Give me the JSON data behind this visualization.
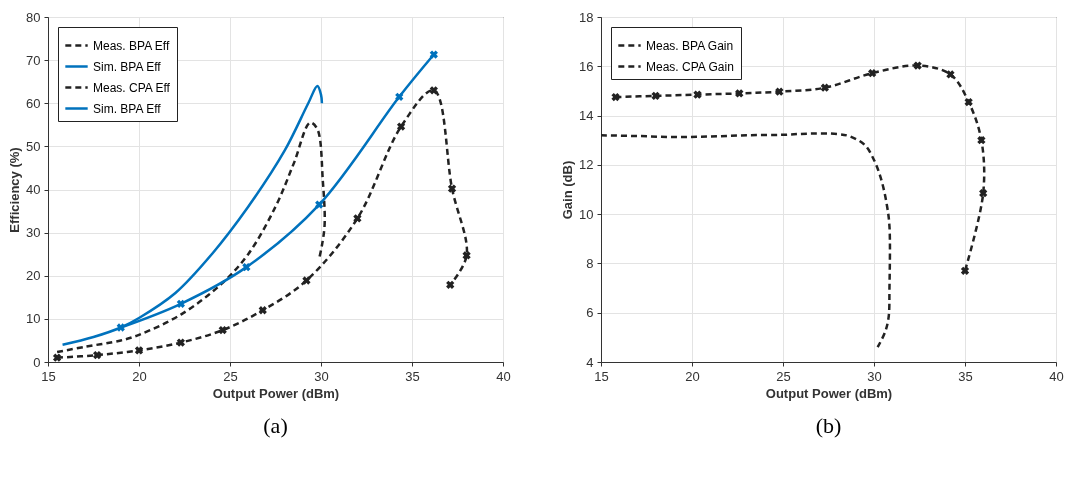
{
  "chart_data": [
    {
      "type": "line",
      "xlabel": "Output Power (dBm)",
      "ylabel": "Efficiency (%)",
      "xlim": [
        15,
        40
      ],
      "xticks": [
        15,
        20,
        25,
        30,
        35,
        40
      ],
      "ylim": [
        0,
        80
      ],
      "yticks": [
        0,
        10,
        20,
        30,
        40,
        50,
        60,
        70,
        80
      ],
      "grid": true,
      "legend": "top left",
      "annotations": [
        "(a)"
      ],
      "series": [
        {
          "name": "Meas. BPA Eff",
          "color": "#222222",
          "line_style": "dashed",
          "marker": "none",
          "x": [
            15.5,
            17,
            19,
            20,
            22.3,
            24.5,
            26,
            27.5,
            28.5,
            29.4,
            29.8,
            30.1,
            30.2,
            30.05,
            29.9
          ],
          "values": [
            2.3,
            3.5,
            5,
            6.3,
            11,
            18,
            25,
            36,
            46,
            55.5,
            54,
            42,
            32,
            27,
            24
          ]
        },
        {
          "name": "Sim. BPA Eff",
          "color": "#0072bd",
          "line_style": "solid",
          "marker": "none",
          "x": [
            15.8,
            17.5,
            19,
            20,
            22,
            24,
            26,
            28,
            29.3,
            29.8,
            30,
            30.05
          ],
          "values": [
            4,
            5.8,
            8,
            10.2,
            16,
            25,
            36,
            49,
            60,
            64,
            62,
            60
          ]
        },
        {
          "name": "Meas. CPA Eff",
          "color": "#222222",
          "line_style": "dashed",
          "marker": "cross",
          "x": [
            15.5,
            17.7,
            20,
            22.3,
            24.6,
            26.8,
            29.2,
            32,
            34.4,
            36.2,
            37.2,
            38,
            37.1
          ],
          "values": [
            1,
            1.6,
            2.7,
            4.5,
            7.4,
            12,
            18.9,
            33.3,
            54.6,
            63,
            40.2,
            24.7,
            17.9
          ]
        },
        {
          "name": "Sim. BPA Eff",
          "color": "#0072bd",
          "line_style": "solid",
          "marker": "cross",
          "x": [
            19,
            22.3,
            25.9,
            29.9,
            34.3,
            36.2
          ],
          "values": [
            8,
            13.5,
            22,
            36.5,
            61.5,
            71.3
          ]
        }
      ]
    },
    {
      "type": "line",
      "xlabel": "Output Power (dBm)",
      "ylabel": "Gain (dB)",
      "xlim": [
        15,
        40
      ],
      "xticks": [
        15,
        20,
        25,
        30,
        35,
        40
      ],
      "ylim": [
        4,
        18
      ],
      "yticks": [
        4,
        6,
        8,
        10,
        12,
        14,
        16,
        18
      ],
      "grid": true,
      "legend": "top left",
      "annotations": [
        "(b)"
      ],
      "series": [
        {
          "name": "Meas. BPA Gain",
          "color": "#222222",
          "line_style": "dashed",
          "marker": "none",
          "x": [
            15,
            17,
            19,
            21,
            23,
            25,
            26.5,
            28,
            28.7,
            29.5,
            30,
            30.4,
            30.7,
            30.85,
            30.85,
            30.8,
            30.6,
            30.2
          ],
          "values": [
            13.2,
            13.17,
            13.13,
            13.15,
            13.2,
            13.22,
            13.27,
            13.25,
            13.15,
            12.8,
            12.2,
            11.4,
            10.4,
            9.5,
            7,
            5.8,
            5.2,
            4.6
          ]
        },
        {
          "name": "Meas. CPA Gain",
          "color": "#222222",
          "line_style": "dashed",
          "marker": "cross",
          "x": [
            15.8,
            18,
            20.3,
            22.6,
            24.8,
            27.3,
            29.9,
            32.4,
            34.2,
            35.2,
            35.9,
            36,
            35
          ],
          "values": [
            14.75,
            14.8,
            14.85,
            14.9,
            14.97,
            15.13,
            15.72,
            16.03,
            15.67,
            14.55,
            13,
            10.85,
            7.7
          ]
        }
      ]
    }
  ]
}
